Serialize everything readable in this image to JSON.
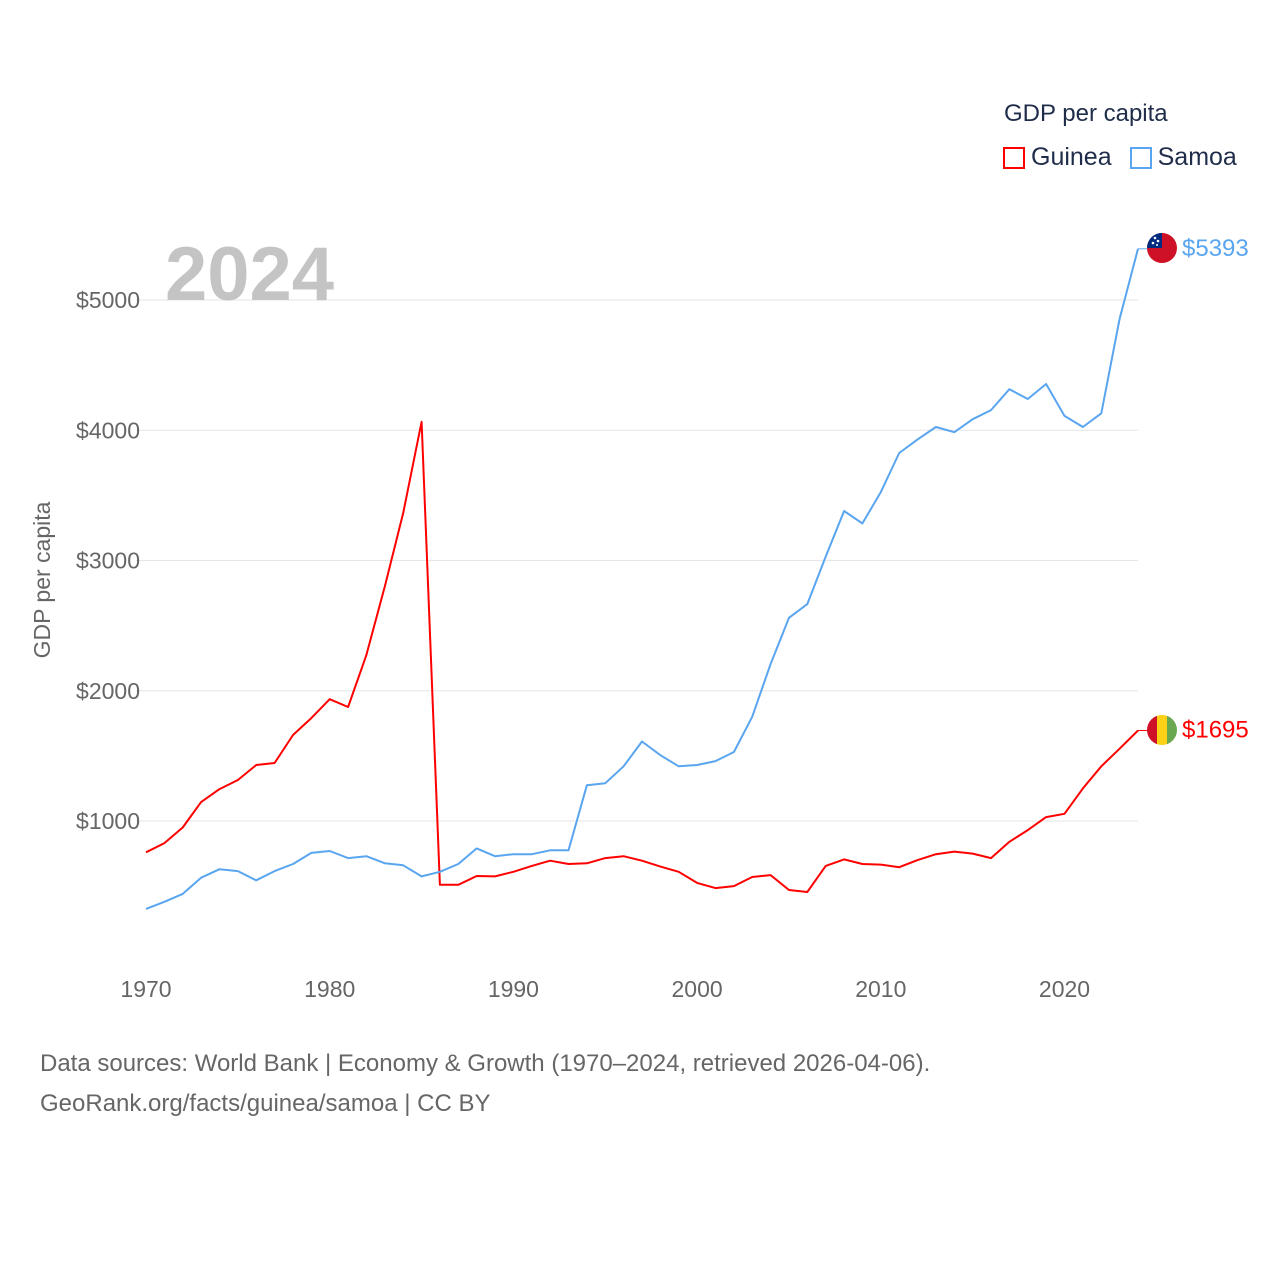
{
  "legend": {
    "title": "GDP per capita",
    "items": [
      {
        "label": "Guinea",
        "color": "#ff0000"
      },
      {
        "label": "Samoa",
        "color": "#5aa5ef"
      }
    ]
  },
  "year_watermark": "2024",
  "source": {
    "line1": "Data sources: World Bank | Economy & Growth (1970–2024, retrieved 2026-04-06).",
    "line2": "GeoRank.org/facts/guinea/samoa | CC BY"
  },
  "chart_data": {
    "type": "line",
    "title": "GDP per capita",
    "xlabel": "",
    "ylabel": "GDP per capita",
    "xlim": [
      1970,
      2024
    ],
    "ylim": [
      0,
      5500
    ],
    "x_ticks": [
      "1970",
      "1980",
      "1990",
      "2000",
      "2010",
      "2020"
    ],
    "y_ticks": [
      "$1000",
      "$2000",
      "$3000",
      "$4000",
      "$5000"
    ],
    "grid": true,
    "legend_position": "top-right",
    "x": [
      1970,
      1971,
      1972,
      1973,
      1974,
      1975,
      1976,
      1977,
      1978,
      1979,
      1980,
      1981,
      1982,
      1983,
      1984,
      1985,
      1986,
      1987,
      1988,
      1989,
      1990,
      1991,
      1992,
      1993,
      1994,
      1995,
      1996,
      1997,
      1998,
      1999,
      2000,
      2001,
      2002,
      2003,
      2004,
      2005,
      2006,
      2007,
      2008,
      2009,
      2010,
      2011,
      2012,
      2013,
      2014,
      2015,
      2016,
      2017,
      2018,
      2019,
      2020,
      2021,
      2022,
      2023,
      2024
    ],
    "series": [
      {
        "name": "Guinea",
        "color": "#ff0000",
        "end_label": "$1695",
        "values": [
          760,
          830,
          950,
          1145,
          1245,
          1315,
          1430,
          1445,
          1660,
          1790,
          1935,
          1875,
          2275,
          2800,
          3365,
          4065,
          510,
          510,
          578,
          575,
          610,
          655,
          695,
          670,
          675,
          715,
          730,
          695,
          650,
          610,
          525,
          485,
          500,
          570,
          585,
          470,
          455,
          655,
          705,
          670,
          665,
          645,
          700,
          745,
          765,
          750,
          715,
          840,
          930,
          1030,
          1055,
          1250,
          1420,
          1555,
          1695
        ]
      },
      {
        "name": "Samoa",
        "color": "#5aa5ef",
        "end_label": "$5393",
        "values": [
          325,
          380,
          440,
          565,
          630,
          615,
          545,
          615,
          670,
          755,
          770,
          715,
          730,
          675,
          660,
          575,
          610,
          670,
          790,
          730,
          745,
          745,
          775,
          775,
          1275,
          1290,
          1420,
          1610,
          1505,
          1420,
          1430,
          1460,
          1530,
          1800,
          2205,
          2560,
          2665,
          3030,
          3380,
          3285,
          3525,
          3825,
          3930,
          4025,
          3985,
          4085,
          4155,
          4315,
          4240,
          4355,
          4110,
          4025,
          4130,
          4855,
          5393
        ]
      }
    ]
  }
}
